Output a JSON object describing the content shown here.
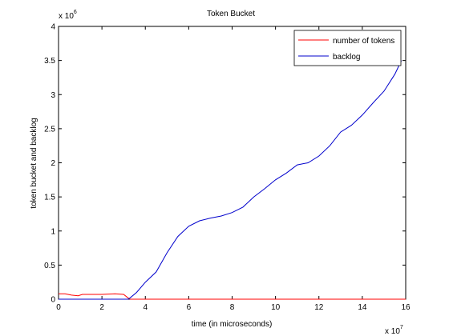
{
  "chart_data": {
    "type": "line",
    "title": "Token Bucket",
    "xlabel": "time (in microseconds)",
    "ylabel": "token bucket and backlog",
    "x_multiplier_label": "x 10",
    "x_multiplier_exp": "7",
    "y_multiplier_label": "x 10",
    "y_multiplier_exp": "6",
    "xlim": [
      0,
      16
    ],
    "ylim": [
      0,
      4
    ],
    "x_ticks": [
      0,
      2,
      4,
      6,
      8,
      10,
      12,
      14,
      16
    ],
    "y_ticks": [
      0,
      0.5,
      1,
      1.5,
      2,
      2.5,
      3,
      3.5,
      4
    ],
    "x_tick_labels": [
      "0",
      "2",
      "4",
      "6",
      "8",
      "10",
      "12",
      "14",
      "16"
    ],
    "y_tick_labels": [
      "0",
      "0.5",
      "1",
      "1.5",
      "2",
      "2.5",
      "3",
      "3.5",
      "4"
    ],
    "grid": false,
    "legend_position": "top-right",
    "series": [
      {
        "name": "number of tokens",
        "color": "#ff0000",
        "x": [
          0,
          0.3,
          0.6,
          0.9,
          1.1,
          1.4,
          2.0,
          2.6,
          3.0,
          3.2,
          3.3,
          16
        ],
        "y": [
          0.08,
          0.08,
          0.06,
          0.05,
          0.07,
          0.07,
          0.07,
          0.08,
          0.07,
          0.02,
          0.0,
          0.0
        ]
      },
      {
        "name": "backlog",
        "color": "#0000cc",
        "x": [
          0,
          3.2,
          3.3,
          3.6,
          4.0,
          4.5,
          5.0,
          5.5,
          6.0,
          6.5,
          7.0,
          7.5,
          8.0,
          8.5,
          9.0,
          9.5,
          10.0,
          10.5,
          11.0,
          11.5,
          12.0,
          12.5,
          13.0,
          13.5,
          14.0,
          14.5,
          15.0,
          15.5,
          15.8
        ],
        "y": [
          0,
          0,
          0.02,
          0.1,
          0.25,
          0.4,
          0.68,
          0.92,
          1.07,
          1.15,
          1.19,
          1.22,
          1.27,
          1.35,
          1.5,
          1.62,
          1.75,
          1.85,
          1.97,
          2.0,
          2.1,
          2.25,
          2.45,
          2.55,
          2.7,
          2.88,
          3.05,
          3.3,
          3.5
        ]
      }
    ]
  }
}
